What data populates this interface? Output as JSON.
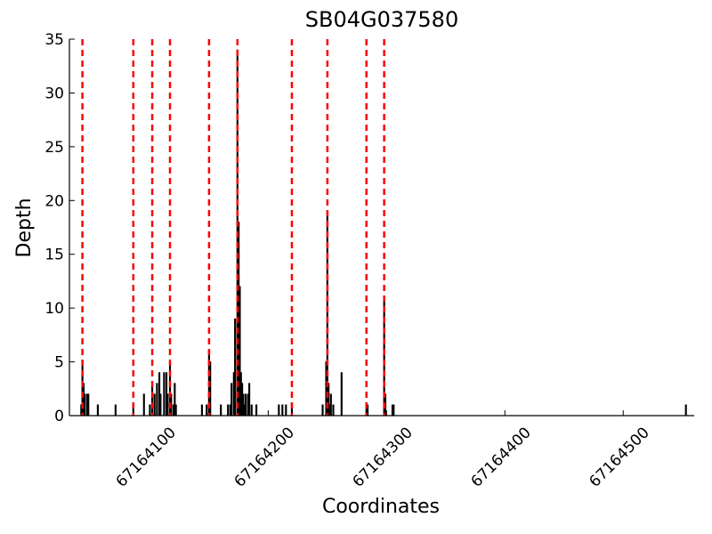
{
  "chart_data": {
    "type": "bar",
    "title": "SB04G037580",
    "x_label": "Coordinates",
    "y_label": "Depth",
    "x": [
      67164042,
      67164043,
      67164044,
      67164045,
      67164047,
      67164048,
      67164056,
      67164071,
      67164086,
      67164095,
      67164100,
      67164102,
      67164104,
      67164106,
      67164108,
      67164109,
      67164112,
      67164114,
      67164115,
      67164117,
      67164118,
      67164120,
      67164121,
      67164122,
      67164144,
      67164148,
      67164150,
      67164151,
      67164160,
      67164166,
      67164168,
      67164169,
      67164171,
      67164172,
      67164174,
      67164175,
      67164176,
      67164177,
      67164178,
      67164179,
      67164180,
      67164181,
      67164183,
      67164184,
      67164186,
      67164190,
      67164209,
      67164212,
      67164215,
      67164220,
      67164246,
      67164249,
      67164250,
      67164251,
      67164252,
      67164253,
      67164255,
      67164262,
      67164283,
      67164284,
      67164298,
      67164299,
      67164305,
      67164306,
      67164553
    ],
    "values": [
      1,
      5,
      3,
      2,
      2,
      2,
      1,
      1,
      1,
      2,
      1,
      3,
      2,
      3,
      4,
      2,
      4,
      4,
      2,
      5,
      2,
      1,
      3,
      1,
      1,
      1,
      6,
      5,
      1,
      1,
      1,
      3,
      4,
      9,
      34,
      18,
      12,
      4,
      3,
      2,
      1,
      2,
      2,
      3,
      1,
      1,
      1,
      1,
      1,
      1,
      1,
      5,
      19,
      3,
      1,
      2,
      1,
      4,
      1,
      1,
      11,
      2,
      1,
      1,
      1
    ],
    "color": "#000000",
    "vlines": [
      67164043,
      67164086,
      67164102,
      67164117,
      67164150,
      67164174,
      67164220,
      67164250,
      67164283,
      67164298
    ],
    "vline_color": "#ff0000",
    "xlim": [
      67164032,
      67164560
    ],
    "xticks": [
      67164100,
      67164200,
      67164300,
      67164400,
      67164500
    ],
    "ylim": [
      0,
      35
    ],
    "yticks": [
      0,
      5,
      10,
      15,
      20,
      25,
      30,
      35
    ]
  }
}
